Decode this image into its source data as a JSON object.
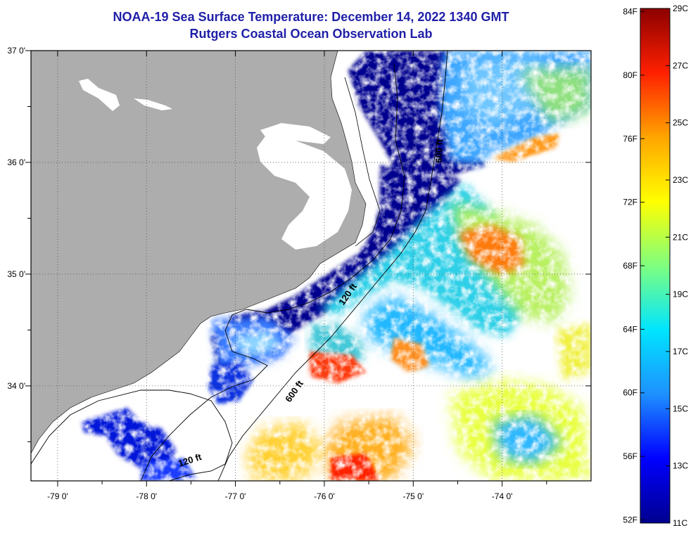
{
  "header": {
    "title": "NOAA-19 Sea Surface Temperature:  December 14, 2022 1340 GMT",
    "subtitle": "Rutgers Coastal Ocean Observation Lab"
  },
  "axes": {
    "lon_range": [
      -79.3,
      -73.0
    ],
    "lat_range": [
      33.15,
      37.0
    ],
    "lon_ticks": [
      {
        "value": -79,
        "label": "-79 0'"
      },
      {
        "value": -78,
        "label": "-78 0'"
      },
      {
        "value": -77,
        "label": "-77 0'"
      },
      {
        "value": -76,
        "label": "-76 0'"
      },
      {
        "value": -75,
        "label": "-75 0'"
      },
      {
        "value": -74,
        "label": "-74 0'"
      }
    ],
    "lat_ticks": [
      {
        "value": 37,
        "label": "37 0'"
      },
      {
        "value": 36,
        "label": "36 0'"
      },
      {
        "value": 35,
        "label": "35 0'"
      },
      {
        "value": 34,
        "label": "34 0'"
      }
    ]
  },
  "contours": [
    {
      "label": "600 ft"
    },
    {
      "label": "120 ft"
    },
    {
      "label": "600 ft"
    },
    {
      "label": "120 ft"
    }
  ],
  "colorbar": {
    "celsius_range": [
      11,
      29
    ],
    "fahrenheit_labels": [
      "84F",
      "80F",
      "76F",
      "72F",
      "68F",
      "64F",
      "60F",
      "56F",
      "52F"
    ],
    "celsius_labels": [
      "29C",
      "27C",
      "25C",
      "23C",
      "21C",
      "19C",
      "17C",
      "15C",
      "13C",
      "11C"
    ],
    "colors": [
      "#00008f",
      "#0000ff",
      "#1e90ff",
      "#00e5ff",
      "#7fff7f",
      "#ffff00",
      "#ffa500",
      "#ff2000",
      "#8b0000"
    ]
  },
  "colors": {
    "land": "#adadad",
    "title": "#1f1fa8"
  }
}
